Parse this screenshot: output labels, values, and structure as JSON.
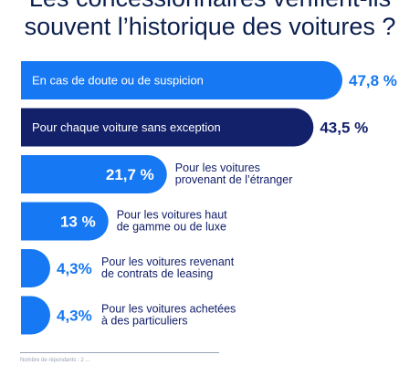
{
  "chart_data": {
    "type": "bar",
    "title_lines": [
      "Les concessionnaires vérifient-ils",
      "souvent l’historique des voitures ?"
    ],
    "orientation": "horizontal",
    "unit": "%",
    "bars": [
      {
        "label": "En cas de doute ou de suspicion",
        "value": 47.8,
        "value_label": "47,8 %",
        "label_position": "inside"
      },
      {
        "label": "Pour chaque voiture sans exception",
        "value": 43.5,
        "value_label": "43,5 %",
        "label_position": "inside"
      },
      {
        "label": "Pour les voitures provenant de l’étranger",
        "label_lines": [
          "Pour les voitures",
          "provenant de l’étranger"
        ],
        "value": 21.7,
        "value_label": "21,7 %",
        "label_position": "outside"
      },
      {
        "label": "Pour les voitures haut de gamme ou de luxe",
        "label_lines": [
          "Pour les voitures haut",
          "de gamme ou de luxe"
        ],
        "value": 13,
        "value_label": "13 %",
        "label_position": "outside"
      },
      {
        "label": "Pour les voitures revenant de contrats de leasing",
        "label_lines": [
          "Pour les voitures revenant",
          "de contrats de leasing"
        ],
        "value": 4.3,
        "value_label": "4,3%",
        "label_position": "outside"
      },
      {
        "label": "Pour les voitures achetées à des particuliers",
        "label_lines": [
          "Pour les voitures achetées",
          "à des particuliers"
        ],
        "value": 4.3,
        "value_label": "4,3%",
        "label_position": "outside"
      }
    ],
    "colors": {
      "bar": "#1678f2",
      "bar_highlight": "#13206a",
      "value_text": "#1678f2",
      "value_text_highlight": "#13206a",
      "label_outside": "#13206a",
      "label_inside": "#ffffff",
      "value_inside": "#ffffff"
    }
  },
  "footnote": "Nombre de répondants : 2 ..."
}
